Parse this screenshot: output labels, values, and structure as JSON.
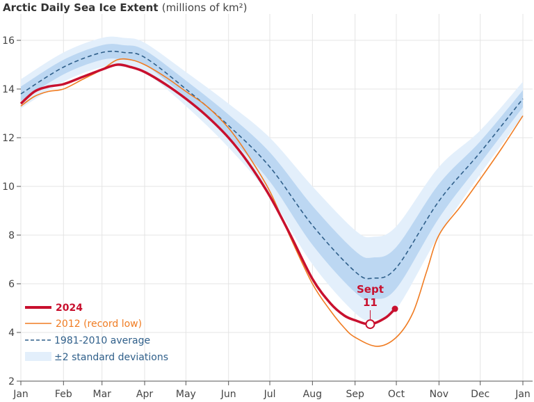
{
  "chart_data": {
    "type": "line",
    "title": "Arctic Daily Sea Ice Extent",
    "title_unit": "(millions of km²)",
    "x_unit": "day of year",
    "xlim": [
      0,
      365
    ],
    "ylim": [
      2,
      16.8
    ],
    "y_ticks": [
      2,
      4,
      6,
      8,
      10,
      12,
      14,
      16
    ],
    "x_ticks": [
      {
        "label": "Jan",
        "day": 0
      },
      {
        "label": "Feb",
        "day": 31
      },
      {
        "label": "Mar",
        "day": 59
      },
      {
        "label": "Apr",
        "day": 90
      },
      {
        "label": "May",
        "day": 120
      },
      {
        "label": "Jun",
        "day": 151
      },
      {
        "label": "Jul",
        "day": 181
      },
      {
        "label": "Aug",
        "day": 212
      },
      {
        "label": "Sep",
        "day": 243
      },
      {
        "label": "Oct",
        "day": 273
      },
      {
        "label": "Nov",
        "day": 304
      },
      {
        "label": "Dec",
        "day": 334
      },
      {
        "label": "Jan",
        "day": 365
      }
    ],
    "grid": true,
    "legend_placement": "bottom-left",
    "colors": {
      "y2024": "#c8102e",
      "y2012": "#f07c22",
      "average": "#2f5f8a",
      "band_outer": "#e3effb",
      "band_inner": "#bcd7f2"
    },
    "series": [
      {
        "name": "2024",
        "x": [
          0,
          10,
          20,
          31,
          45,
          59,
          70,
          80,
          90,
          105,
          120,
          135,
          151,
          165,
          181,
          196,
          212,
          225,
          235,
          243,
          254,
          265,
          272
        ],
        "y": [
          13.4,
          13.9,
          14.1,
          14.2,
          14.5,
          14.8,
          15.0,
          14.9,
          14.7,
          14.2,
          13.6,
          12.9,
          12.0,
          11.0,
          9.6,
          8.0,
          6.2,
          5.2,
          4.7,
          4.5,
          4.34,
          4.6,
          4.97
        ]
      },
      {
        "name": "2012 (record low)",
        "x": [
          0,
          10,
          20,
          31,
          45,
          59,
          70,
          80,
          90,
          105,
          120,
          135,
          151,
          165,
          181,
          196,
          212,
          225,
          235,
          243,
          259,
          273,
          285,
          295,
          304,
          320,
          334,
          350,
          365
        ],
        "y": [
          13.3,
          13.7,
          13.9,
          14.0,
          14.4,
          14.8,
          15.2,
          15.2,
          15.0,
          14.5,
          13.9,
          13.3,
          12.4,
          11.3,
          9.8,
          7.9,
          6.0,
          4.9,
          4.2,
          3.8,
          3.43,
          3.8,
          4.8,
          6.5,
          8.0,
          9.2,
          10.3,
          11.6,
          12.9
        ]
      },
      {
        "name": "1981-2010 average",
        "x": [
          0,
          31,
          59,
          75,
          90,
          120,
          151,
          181,
          212,
          243,
          256,
          273,
          304,
          334,
          365
        ],
        "y": [
          13.8,
          14.9,
          15.5,
          15.5,
          15.3,
          14.0,
          12.5,
          10.8,
          8.4,
          6.5,
          6.23,
          6.66,
          9.4,
          11.4,
          13.6
        ],
        "std": [
          0.3,
          0.3,
          0.3,
          0.3,
          0.3,
          0.35,
          0.45,
          0.6,
          0.8,
          0.85,
          0.85,
          0.85,
          0.7,
          0.45,
          0.35
        ]
      }
    ],
    "band_label": "±2 standard deviations",
    "annotation": {
      "text_line1": "Sept",
      "text_line2": "11",
      "day": 254,
      "value": 4.34
    }
  }
}
